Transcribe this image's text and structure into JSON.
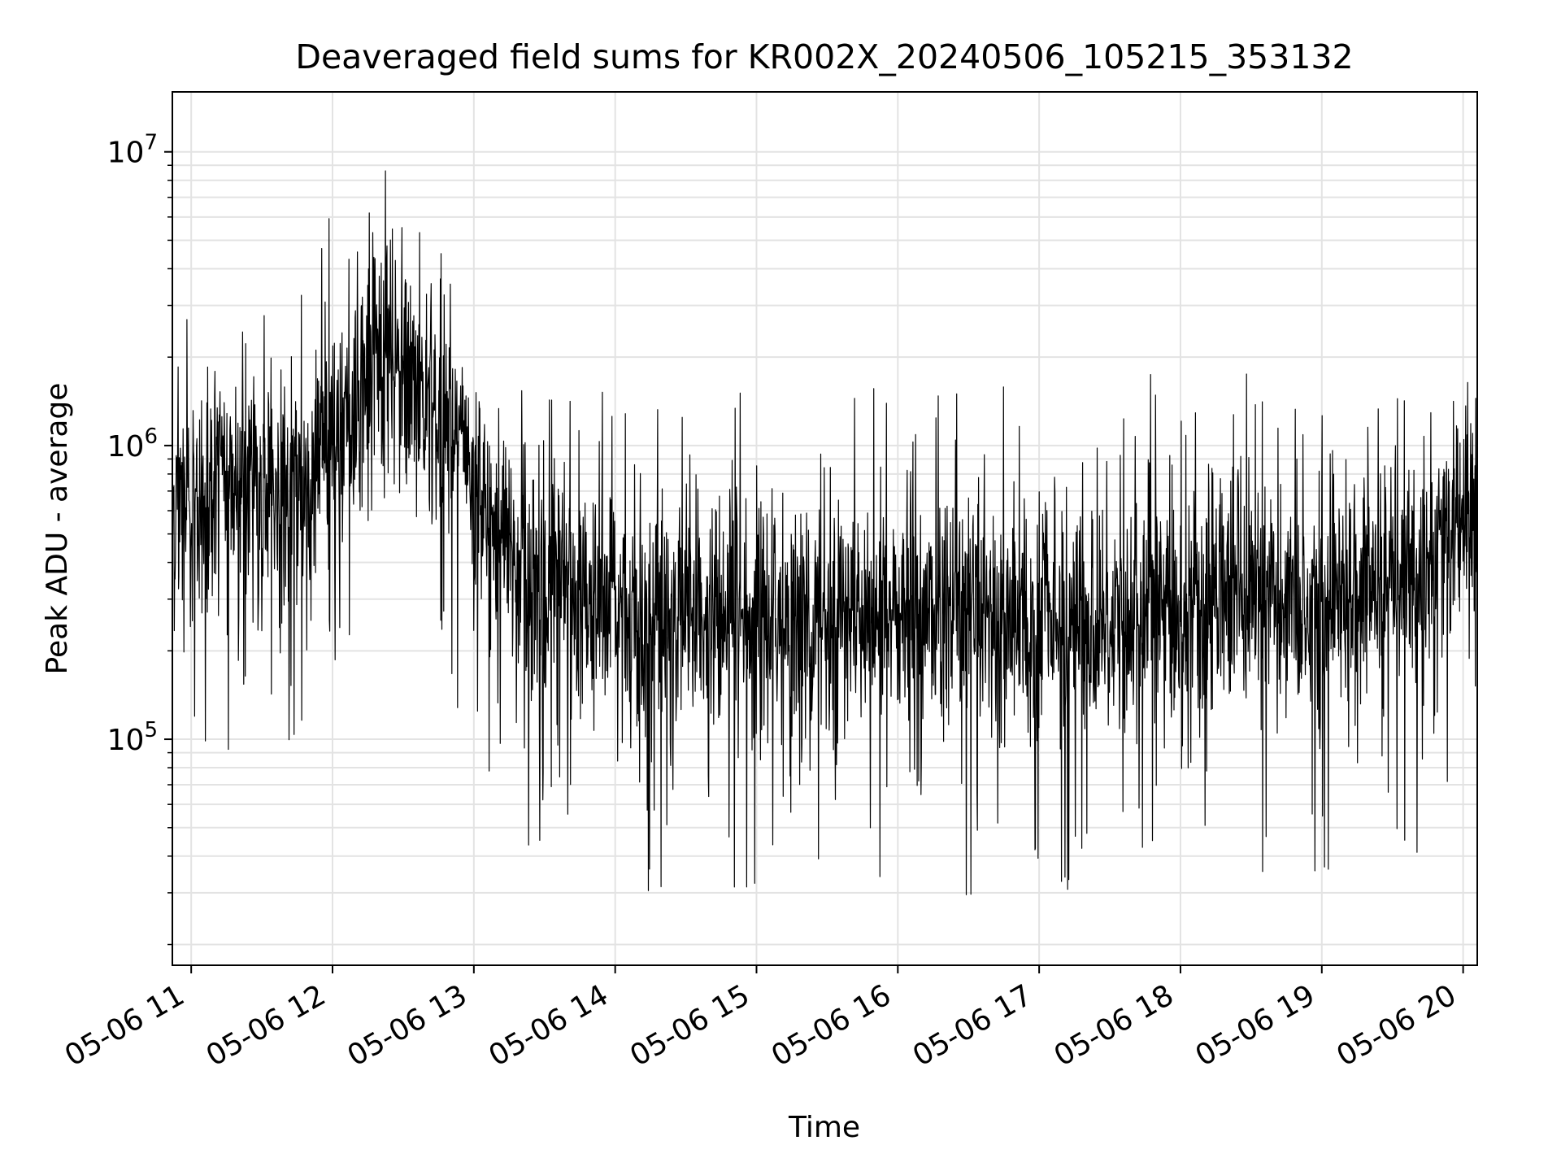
{
  "chart_data": {
    "type": "line",
    "title": "Deaveraged field sums for KR002X_20240506_105215_353132",
    "xlabel": "Time",
    "ylabel": "Peak ADU - average",
    "yscale": "log",
    "ylim": [
      17000,
      16000000
    ],
    "xlim": [
      "05-06 10:52",
      "05-06 20:06"
    ],
    "y_major_ticks": [
      {
        "value": 100000,
        "base": "10",
        "exp": "5"
      },
      {
        "value": 1000000,
        "base": "10",
        "exp": "6"
      },
      {
        "value": 10000000,
        "base": "10",
        "exp": "7"
      }
    ],
    "x_ticks": [
      "05-06 11",
      "05-06 12",
      "05-06 13",
      "05-06 14",
      "05-06 15",
      "05-06 16",
      "05-06 17",
      "05-06 18",
      "05-06 19",
      "05-06 20"
    ],
    "grid": true,
    "line_color": "#000000",
    "series": [
      {
        "x": [
          "05-06 10:52",
          "05-06 11:00",
          "05-06 11:10",
          "05-06 11:20",
          "05-06 11:30",
          "05-06 11:40",
          "05-06 11:50",
          "05-06 12:00",
          "05-06 12:10",
          "05-06 12:20",
          "05-06 12:30",
          "05-06 12:40",
          "05-06 12:50",
          "05-06 13:00",
          "05-06 13:10",
          "05-06 13:20",
          "05-06 13:30",
          "05-06 13:40",
          "05-06 13:50",
          "05-06 14:00",
          "05-06 14:10",
          "05-06 14:20",
          "05-06 14:30",
          "05-06 14:40",
          "05-06 14:50",
          "05-06 15:00",
          "05-06 15:10",
          "05-06 15:20",
          "05-06 15:30",
          "05-06 15:40",
          "05-06 15:50",
          "05-06 16:00",
          "05-06 16:10",
          "05-06 16:20",
          "05-06 16:30",
          "05-06 16:40",
          "05-06 16:50",
          "05-06 17:00",
          "05-06 17:10",
          "05-06 17:20",
          "05-06 17:30",
          "05-06 17:40",
          "05-06 17:50",
          "05-06 18:00",
          "05-06 18:10",
          "05-06 18:20",
          "05-06 18:30",
          "05-06 18:40",
          "05-06 18:50",
          "05-06 19:00",
          "05-06 19:10",
          "05-06 19:20",
          "05-06 19:30",
          "05-06 19:40",
          "05-06 19:50",
          "05-06 20:00",
          "05-06 20:06"
        ],
        "y": [
          600000,
          650000,
          750000,
          800000,
          700000,
          650000,
          700000,
          1100000,
          1500000,
          1900000,
          1700000,
          1400000,
          1200000,
          700000,
          450000,
          380000,
          330000,
          310000,
          290000,
          280000,
          270000,
          260000,
          260000,
          255000,
          255000,
          255000,
          260000,
          260000,
          265000,
          265000,
          265000,
          265000,
          260000,
          260000,
          255000,
          255000,
          255000,
          260000,
          260000,
          265000,
          270000,
          275000,
          280000,
          285000,
          290000,
          295000,
          300000,
          305000,
          310000,
          315000,
          320000,
          330000,
          340000,
          360000,
          450000,
          550000,
          600000
        ]
      }
    ]
  }
}
